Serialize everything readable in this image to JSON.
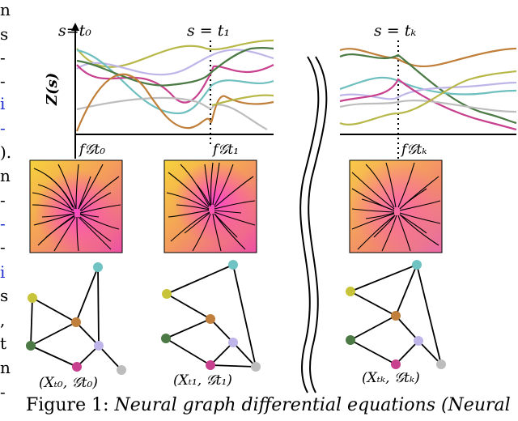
{
  "figure": {
    "time_labels": [
      "s=t₀",
      "s = t₁",
      "s = tₖ"
    ],
    "y_axis_label": "Z(s)",
    "field_labels": [
      "f𝒢t₀",
      "f𝒢t₁",
      "f𝒢tₖ"
    ],
    "graph_labels": [
      "(Xₜ₀, 𝒢t₀)",
      "(Xₜ₁, 𝒢t₁)",
      "(Xₜₖ, 𝒢tₖ)"
    ],
    "caption_prefix": "Figure 1:",
    "caption_italic": "Neural graph differential equations (Neural",
    "left_margin_fragments": [
      {
        "text": "n",
        "link": false
      },
      {
        "text": "s",
        "link": false
      },
      {
        "text": "-",
        "link": false
      },
      {
        "text": "-",
        "link": false
      },
      {
        "text": "i",
        "link": true
      },
      {
        "text": "-",
        "link": true
      },
      {
        "text": ").",
        "link": false
      },
      {
        "text": "n",
        "link": false
      },
      {
        "text": "-",
        "link": false
      },
      {
        "text": "-",
        "link": true
      },
      {
        "text": "-",
        "link": false
      },
      {
        "text": "i",
        "link": true
      },
      {
        "text": "s",
        "link": false
      },
      {
        "text": ",",
        "link": false
      },
      {
        "text": "t",
        "link": false
      },
      {
        "text": "n",
        "link": false
      },
      {
        "text": "-",
        "link": false
      }
    ],
    "series_colors": [
      "#b8b84a",
      "#c07f3a",
      "#bfb5e8",
      "#6fbfbf",
      "#c8418f",
      "#4c7a45",
      "#bdbdbd"
    ],
    "node_colors": {
      "yellow": "#c8c43a",
      "orange": "#c07f3a",
      "teal": "#6fc3c3",
      "green": "#4c7a45",
      "magenta": "#c8418f",
      "lavender": "#bfb5e8",
      "gray": "#bdbdbd"
    }
  }
}
